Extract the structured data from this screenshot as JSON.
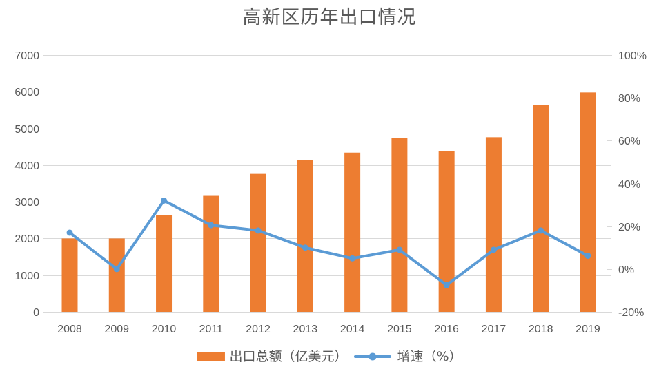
{
  "chart_data": {
    "type": "combo-bar-line",
    "title": "高新区历年出口情况",
    "categories": [
      "2008",
      "2009",
      "2010",
      "2011",
      "2012",
      "2013",
      "2014",
      "2015",
      "2016",
      "2017",
      "2018",
      "2019"
    ],
    "series": [
      {
        "name": "出口总额（亿美元）",
        "type": "bar",
        "axis": "left",
        "values": [
          2000,
          2000,
          2640,
          3180,
          3760,
          4130,
          4340,
          4730,
          4380,
          4760,
          5630,
          5980
        ]
      },
      {
        "name": "增速（%）",
        "type": "line",
        "axis": "right",
        "values": [
          17,
          0,
          32,
          20.5,
          18,
          10,
          5,
          9,
          -7.5,
          9,
          18,
          6.2
        ]
      }
    ],
    "left_axis": {
      "min": 0,
      "max": 7000,
      "ticks": [
        "0",
        "1000",
        "2000",
        "3000",
        "4000",
        "5000",
        "6000",
        "7000"
      ]
    },
    "right_axis": {
      "min": -20,
      "max": 100,
      "ticks": [
        "-20%",
        "0%",
        "20%",
        "40%",
        "60%",
        "80%",
        "100%"
      ]
    },
    "legend_position": "bottom",
    "grid": "horizontal",
    "colors": {
      "bar": "#ED7D31",
      "line": "#5B9BD5",
      "grid": "#D9D9D9",
      "text": "#595959",
      "title_text": "#595959",
      "background": "#FFFFFF"
    }
  }
}
